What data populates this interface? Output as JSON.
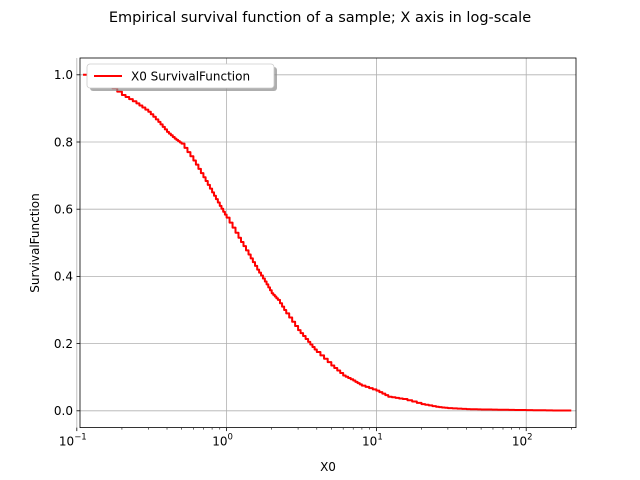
{
  "chart_data": {
    "type": "line",
    "title": "Empirical survival function of a sample; X axis in log-scale",
    "xlabel": "X0",
    "ylabel": "SurvivalFunction",
    "xscale": "log",
    "xlim": [
      0.105,
      215
    ],
    "ylim": [
      -0.05,
      1.05
    ],
    "grid": true,
    "legend": {
      "placement": "top-left",
      "shadow": true
    },
    "x_ticks": [
      {
        "value": 0.1,
        "base": "10",
        "exp": "−1"
      },
      {
        "value": 1,
        "base": "10",
        "exp": "0"
      },
      {
        "value": 10,
        "base": "10",
        "exp": "1"
      },
      {
        "value": 100,
        "base": "10",
        "exp": "2"
      }
    ],
    "y_ticks": [
      {
        "value": 0.0,
        "label": "0.0"
      },
      {
        "value": 0.2,
        "label": "0.2"
      },
      {
        "value": 0.4,
        "label": "0.4"
      },
      {
        "value": 0.6,
        "label": "0.6"
      },
      {
        "value": 0.8,
        "label": "0.8"
      },
      {
        "value": 1.0,
        "label": "1.0"
      }
    ],
    "series": [
      {
        "name": "X0 SurvivalFunction",
        "color": "#ff0000",
        "x": [
          0.11,
          0.15,
          0.2,
          0.25,
          0.3,
          0.35,
          0.4,
          0.45,
          0.5,
          0.6,
          0.7,
          0.8,
          0.9,
          1.0,
          1.2,
          1.4,
          1.6,
          1.8,
          2.0,
          2.2,
          2.5,
          3.0,
          3.5,
          4.0,
          5.0,
          6.0,
          7.0,
          8.0,
          10.0,
          12.0,
          15.0,
          20.0,
          25.0,
          30.0,
          40.0,
          50.0,
          70.0,
          100.0,
          150.0,
          200.0
        ],
        "y": [
          1.0,
          0.98,
          0.94,
          0.915,
          0.89,
          0.86,
          0.83,
          0.81,
          0.795,
          0.745,
          0.695,
          0.65,
          0.61,
          0.575,
          0.515,
          0.465,
          0.42,
          0.385,
          0.35,
          0.33,
          0.29,
          0.24,
          0.205,
          0.175,
          0.135,
          0.105,
          0.09,
          0.075,
          0.06,
          0.042,
          0.035,
          0.02,
          0.012,
          0.008,
          0.005,
          0.004,
          0.003,
          0.002,
          0.001,
          0.001
        ]
      }
    ]
  }
}
